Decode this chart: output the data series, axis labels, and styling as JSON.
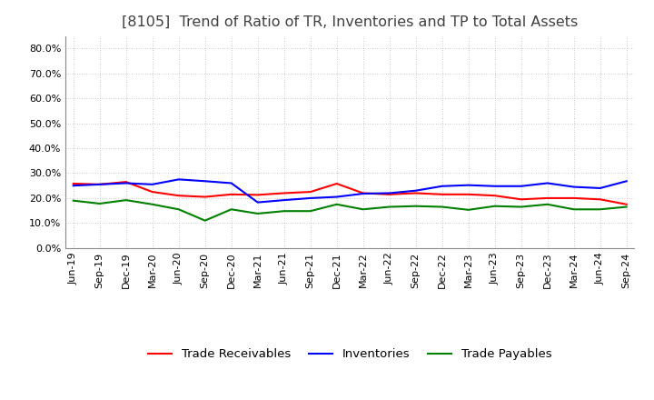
{
  "title": "[8105]  Trend of Ratio of TR, Inventories and TP to Total Assets",
  "labels": [
    "Jun-19",
    "Sep-19",
    "Dec-19",
    "Mar-20",
    "Jun-20",
    "Sep-20",
    "Dec-20",
    "Mar-21",
    "Jun-21",
    "Sep-21",
    "Dec-21",
    "Mar-22",
    "Jun-22",
    "Sep-22",
    "Dec-22",
    "Mar-23",
    "Jun-23",
    "Sep-23",
    "Dec-23",
    "Mar-24",
    "Jun-24",
    "Sep-24"
  ],
  "trade_receivables": [
    0.258,
    0.255,
    0.265,
    0.225,
    0.21,
    0.205,
    0.215,
    0.213,
    0.22,
    0.225,
    0.258,
    0.22,
    0.215,
    0.22,
    0.215,
    0.215,
    0.21,
    0.195,
    0.2,
    0.2,
    0.195,
    0.175
  ],
  "inventories": [
    0.25,
    0.255,
    0.26,
    0.255,
    0.275,
    0.268,
    0.26,
    0.183,
    0.192,
    0.2,
    0.205,
    0.218,
    0.22,
    0.23,
    0.248,
    0.252,
    0.248,
    0.248,
    0.26,
    0.245,
    0.24,
    0.268
  ],
  "trade_payables": [
    0.19,
    0.178,
    0.192,
    0.175,
    0.155,
    0.11,
    0.155,
    0.138,
    0.148,
    0.148,
    0.175,
    0.155,
    0.165,
    0.168,
    0.165,
    0.153,
    0.168,
    0.165,
    0.175,
    0.155,
    0.155,
    0.165
  ],
  "tr_color": "#FF0000",
  "inv_color": "#0000FF",
  "tp_color": "#008000",
  "ylim": [
    0.0,
    0.85
  ],
  "yticks": [
    0.0,
    0.1,
    0.2,
    0.3,
    0.4,
    0.5,
    0.6,
    0.7,
    0.8
  ],
  "background_color": "#FFFFFF",
  "grid_color": "#AAAAAA",
  "title_fontsize": 11.5,
  "title_color": "#404040",
  "legend_fontsize": 9.5,
  "tick_fontsize": 8,
  "line_width": 1.5
}
